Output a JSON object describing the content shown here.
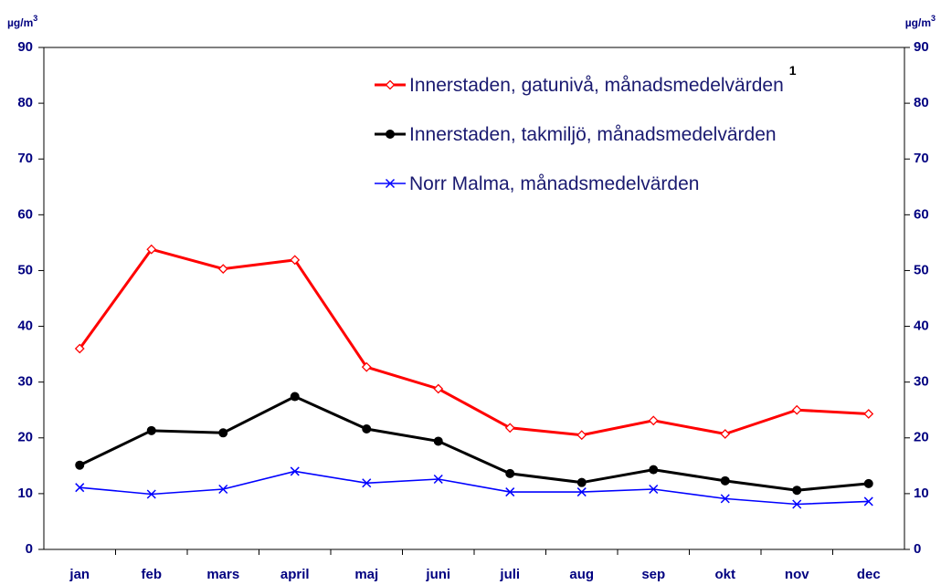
{
  "chart_data": {
    "type": "line",
    "y_unit": {
      "base": "µg/m",
      "sup": "3"
    },
    "categories": [
      "jan",
      "feb",
      "mars",
      "april",
      "maj",
      "juni",
      "juli",
      "aug",
      "sep",
      "okt",
      "nov",
      "dec"
    ],
    "series": [
      {
        "name": "Innerstaden, gatunivå, månadsmedelvärden",
        "footnote": "1",
        "color": "#ff0000",
        "marker": "diamond",
        "values": [
          36.0,
          53.8,
          50.3,
          51.9,
          32.7,
          28.8,
          21.8,
          20.5,
          23.1,
          20.7,
          25.0,
          24.3
        ]
      },
      {
        "name": "Innerstaden, takmiljö, månadsmedelvärden",
        "color": "#000000",
        "marker": "circle",
        "values": [
          15.1,
          21.3,
          20.9,
          27.4,
          21.6,
          19.4,
          13.6,
          12.0,
          14.3,
          12.3,
          10.6,
          11.8
        ]
      },
      {
        "name": "Norr Malma, månadsmedelvärden",
        "color": "#0000ff",
        "marker": "x",
        "values": [
          11.1,
          9.9,
          10.8,
          14.0,
          11.9,
          12.6,
          10.3,
          10.3,
          10.8,
          9.1,
          8.1,
          8.6
        ]
      }
    ],
    "ylim": [
      0,
      90
    ],
    "yticks": [
      0,
      10,
      20,
      30,
      40,
      50,
      60,
      70,
      80,
      90
    ],
    "y2lim": [
      0,
      90
    ],
    "y2ticks": [
      0,
      10,
      20,
      30,
      40,
      50,
      60,
      70,
      80,
      90
    ],
    "legend": "upper right"
  }
}
